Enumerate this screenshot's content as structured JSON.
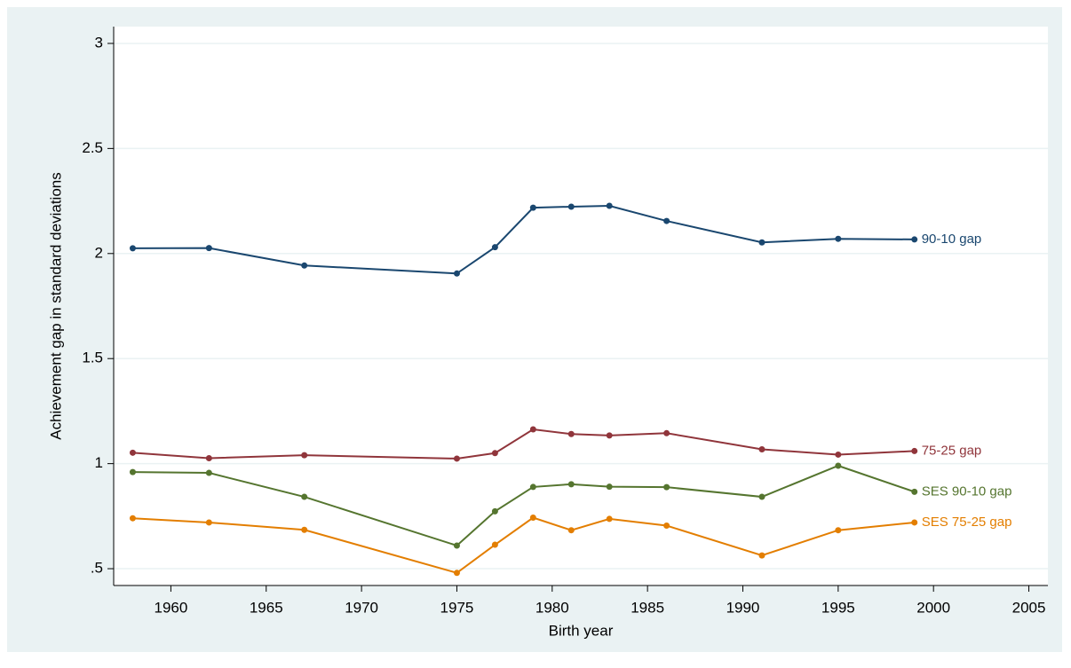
{
  "chart_data": {
    "type": "line",
    "x_label": "Birth year",
    "y_label": "Achievement gap in standard deviations",
    "x": [
      1958,
      1962,
      1967,
      1975,
      1977,
      1979,
      1981,
      1983,
      1986,
      1991,
      1995,
      1999
    ],
    "series": [
      {
        "name": "90-10 gap",
        "color": "#1a476f",
        "values": [
          2.025,
          2.026,
          1.943,
          1.905,
          2.03,
          2.218,
          2.223,
          2.227,
          2.155,
          2.053,
          2.07,
          2.067
        ]
      },
      {
        "name": "75-25 gap",
        "color": "#90353b",
        "values": [
          1.052,
          1.026,
          1.04,
          1.024,
          1.05,
          1.163,
          1.141,
          1.134,
          1.145,
          1.068,
          1.043,
          1.06
        ]
      },
      {
        "name": "SES 90-10 gap",
        "color": "#55752f",
        "values": [
          0.96,
          0.956,
          0.842,
          0.61,
          0.773,
          0.889,
          0.902,
          0.89,
          0.888,
          0.842,
          0.99,
          0.866
        ]
      },
      {
        "name": "SES 75-25 gap",
        "color": "#e37e00",
        "values": [
          0.74,
          0.72,
          0.685,
          0.48,
          0.614,
          0.743,
          0.683,
          0.737,
          0.705,
          0.563,
          0.683,
          0.72
        ]
      }
    ],
    "xlim": [
      1957,
      2006
    ],
    "xticks": [
      1960,
      1965,
      1970,
      1975,
      1980,
      1985,
      1990,
      1995,
      2000,
      2005
    ],
    "ylim": [
      0.42,
      3.08
    ],
    "yticks": [
      {
        "value": 0.5,
        "label": ".5"
      },
      1,
      1.5,
      2,
      2.5,
      3
    ],
    "grid": true
  }
}
